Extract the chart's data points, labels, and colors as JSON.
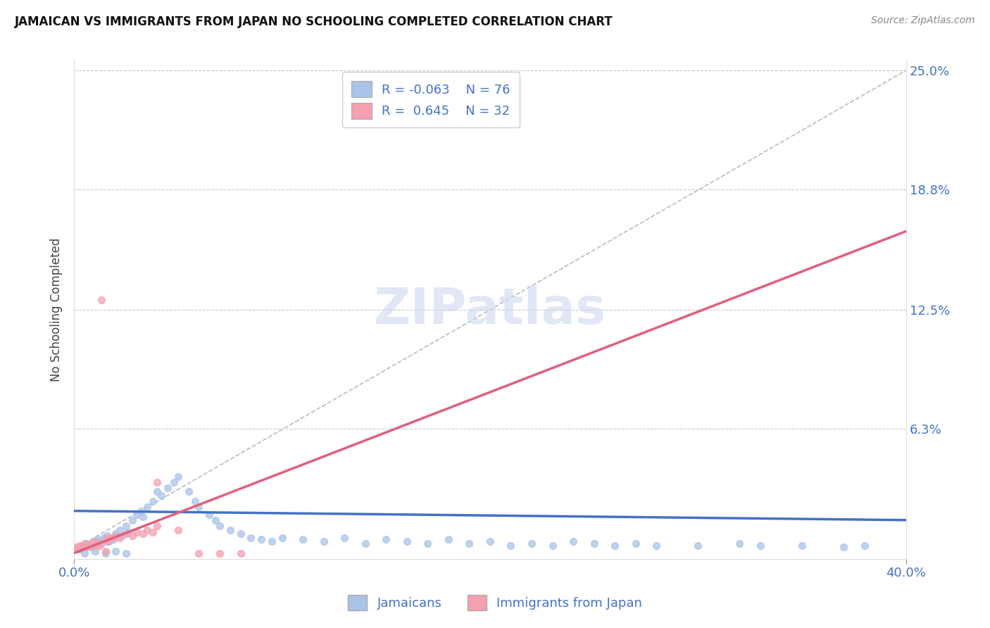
{
  "title": "JAMAICAN VS IMMIGRANTS FROM JAPAN NO SCHOOLING COMPLETED CORRELATION CHART",
  "source": "Source: ZipAtlas.com",
  "ylabel": "No Schooling Completed",
  "xlim": [
    0.0,
    0.4
  ],
  "ylim": [
    -0.005,
    0.255
  ],
  "ytick_labels_right": [
    "25.0%",
    "18.8%",
    "12.5%",
    "6.3%"
  ],
  "ytick_vals_right": [
    0.25,
    0.188,
    0.125,
    0.063
  ],
  "grid_color": "#c8c8dc",
  "grid_style": "--",
  "background_color": "#ffffff",
  "blue_scatter_x": [
    0.001,
    0.002,
    0.003,
    0.004,
    0.005,
    0.006,
    0.007,
    0.008,
    0.009,
    0.01,
    0.011,
    0.012,
    0.013,
    0.014,
    0.015,
    0.016,
    0.017,
    0.018,
    0.019,
    0.02,
    0.022,
    0.023,
    0.025,
    0.026,
    0.028,
    0.03,
    0.032,
    0.033,
    0.035,
    0.038,
    0.04,
    0.042,
    0.045,
    0.048,
    0.05,
    0.055,
    0.058,
    0.06,
    0.065,
    0.068,
    0.07,
    0.075,
    0.08,
    0.085,
    0.09,
    0.095,
    0.1,
    0.11,
    0.12,
    0.13,
    0.14,
    0.15,
    0.16,
    0.17,
    0.18,
    0.19,
    0.2,
    0.21,
    0.22,
    0.23,
    0.24,
    0.25,
    0.26,
    0.27,
    0.28,
    0.3,
    0.32,
    0.33,
    0.35,
    0.37,
    0.38,
    0.005,
    0.01,
    0.015,
    0.02,
    0.025
  ],
  "blue_scatter_y": [
    0.0,
    0.001,
    0.0,
    0.002,
    0.001,
    0.003,
    0.002,
    0.001,
    0.003,
    0.002,
    0.005,
    0.004,
    0.003,
    0.006,
    0.005,
    0.007,
    0.004,
    0.006,
    0.005,
    0.008,
    0.01,
    0.007,
    0.012,
    0.009,
    0.015,
    0.018,
    0.02,
    0.017,
    0.022,
    0.025,
    0.03,
    0.028,
    0.032,
    0.035,
    0.038,
    0.03,
    0.025,
    0.022,
    0.018,
    0.015,
    0.012,
    0.01,
    0.008,
    0.006,
    0.005,
    0.004,
    0.006,
    0.005,
    0.004,
    0.006,
    0.003,
    0.005,
    0.004,
    0.003,
    0.005,
    0.003,
    0.004,
    0.002,
    0.003,
    0.002,
    0.004,
    0.003,
    0.002,
    0.003,
    0.002,
    0.002,
    0.003,
    0.002,
    0.002,
    0.001,
    0.002,
    -0.002,
    -0.001,
    -0.002,
    -0.001,
    -0.002
  ],
  "pink_scatter_x": [
    0.001,
    0.002,
    0.003,
    0.004,
    0.005,
    0.006,
    0.007,
    0.008,
    0.009,
    0.01,
    0.011,
    0.012,
    0.013,
    0.015,
    0.016,
    0.017,
    0.018,
    0.02,
    0.022,
    0.025,
    0.028,
    0.03,
    0.033,
    0.035,
    0.038,
    0.04,
    0.05,
    0.06,
    0.07,
    0.08,
    0.015,
    0.04
  ],
  "pink_scatter_y": [
    0.001,
    0.0,
    0.002,
    0.001,
    0.003,
    0.001,
    0.002,
    0.003,
    0.002,
    0.004,
    0.003,
    0.002,
    0.13,
    0.005,
    0.004,
    0.006,
    0.005,
    0.007,
    0.006,
    0.008,
    0.007,
    0.009,
    0.008,
    0.01,
    0.009,
    0.012,
    0.01,
    -0.002,
    -0.002,
    -0.002,
    -0.001,
    0.035
  ],
  "blue_color": "#aac4e8",
  "pink_color": "#f4a0b0",
  "blue_trend_color": "#4472c4",
  "pink_trend_color": "#e0607e",
  "blue_trend_slope": -0.012,
  "blue_trend_intercept": 0.02,
  "pink_trend_slope": 0.42,
  "pink_trend_intercept": -0.002,
  "ref_line_color": "#bbbbbb",
  "watermark": "ZIPatlas",
  "legend_color": "#4472c4",
  "title_color": "#111111",
  "tick_color": "#4472c4",
  "source_color": "#888888"
}
